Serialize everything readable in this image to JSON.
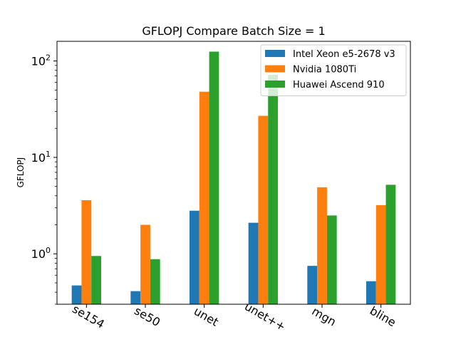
{
  "chart_data": {
    "type": "bar",
    "title": "GFLOPJ Compare Batch Size = 1",
    "xlabel": "",
    "ylabel": "GFLOPJ",
    "yscale": "log",
    "ylim": [
      0.3,
      160
    ],
    "yticks": [
      {
        "value": 1,
        "base": "10",
        "exp": "0"
      },
      {
        "value": 10,
        "base": "10",
        "exp": "1"
      },
      {
        "value": 100,
        "base": "10",
        "exp": "2"
      }
    ],
    "grid": false,
    "legend": "top-right",
    "categories": [
      "se154",
      "se50",
      "unet",
      "unet++",
      "mgn",
      "bline"
    ],
    "series": [
      {
        "name": "Intel Xeon e5-2678 v3",
        "color": "#1f77b4",
        "values": [
          0.47,
          0.41,
          2.8,
          2.1,
          0.75,
          0.52
        ]
      },
      {
        "name": "Nvidia 1080Ti",
        "color": "#ff7f0e",
        "values": [
          3.6,
          2.0,
          48,
          27,
          4.9,
          3.2
        ]
      },
      {
        "name": "Huawei Ascend 910",
        "color": "#2ca02c",
        "values": [
          0.95,
          0.88,
          125,
          72,
          2.5,
          5.2
        ]
      }
    ]
  }
}
